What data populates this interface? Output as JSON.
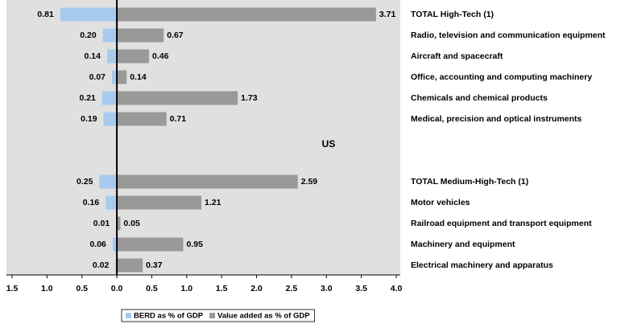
{
  "chart_data": {
    "type": "bar",
    "orientation": "horizontal",
    "annotation": "US",
    "categories": [
      "TOTAL High-Tech (1)",
      "Radio, television and communication equipment",
      "Aircraft and spacecraft",
      "Office, accounting and computing machinery",
      "Chemicals and chemical products",
      "Medical, precision and optical instruments",
      null,
      null,
      "TOTAL Medium-High-Tech (1)",
      "Motor vehicles",
      "Railroad equipment and transport equipment",
      "Machinery and equipment",
      "Electrical machinery and apparatus"
    ],
    "series": [
      {
        "name": "BERD as % of GDP",
        "color": "#a6cbef",
        "values": [
          -0.81,
          -0.2,
          -0.14,
          -0.07,
          -0.21,
          -0.19,
          null,
          null,
          -0.25,
          -0.16,
          -0.01,
          -0.06,
          -0.02
        ],
        "value_labels": [
          "0.81",
          "0.20",
          "0.14",
          "0.07",
          "0.21",
          "0.19",
          null,
          null,
          "0.25",
          "0.16",
          "0.01",
          "0.06",
          "0.02"
        ]
      },
      {
        "name": "Value added as % of GDP",
        "color": "#999999",
        "values": [
          3.71,
          0.67,
          0.46,
          0.14,
          1.73,
          0.71,
          null,
          null,
          2.59,
          1.21,
          0.05,
          0.95,
          0.37
        ]
      }
    ],
    "xlim": [
      -1.5,
      4.0
    ],
    "xticks": [
      {
        "value": -1.5,
        "label": "1.5"
      },
      {
        "value": -1,
        "label": "1.0"
      },
      {
        "value": -0.5,
        "label": "0.5"
      },
      {
        "value": 0,
        "label": "0.0"
      },
      0.5,
      {
        "value": 1,
        "label": "1.0"
      },
      1.5,
      {
        "value": 2,
        "label": "2.0"
      },
      2.5,
      {
        "value": 3,
        "label": "3.0"
      },
      3.5,
      {
        "value": 4,
        "label": "4.0"
      }
    ],
    "legend": "bottom"
  }
}
